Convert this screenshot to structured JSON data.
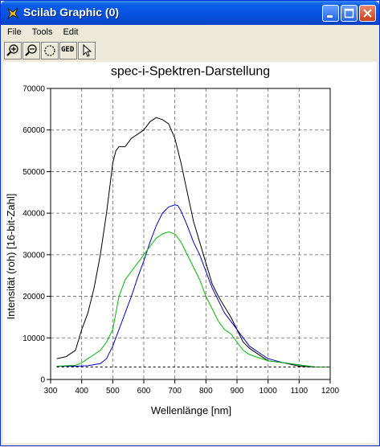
{
  "window": {
    "title": "Scilab Graphic (0)"
  },
  "menu": {
    "file": "File",
    "tools": "Tools",
    "edit": "Edit"
  },
  "toolbar": {
    "ged_label": "GED"
  },
  "chart_data": {
    "type": "line",
    "title": "spec-i-Spektren-Darstellung",
    "xlabel": "Wellenlänge [nm]",
    "ylabel": "Intensität (roh) [16-bit-Zahl]",
    "xlim": [
      300,
      1200
    ],
    "ylim": [
      0,
      70000
    ],
    "xticks": [
      300,
      400,
      500,
      600,
      700,
      800,
      900,
      1000,
      1100,
      1200
    ],
    "yticks": [
      0,
      10000,
      20000,
      30000,
      40000,
      50000,
      60000,
      70000
    ],
    "grid": true,
    "series": [
      {
        "color": "#000000",
        "x": [
          320,
          350,
          380,
          400,
          420,
          440,
          460,
          480,
          500,
          510,
          520,
          540,
          560,
          580,
          600,
          620,
          640,
          660,
          680,
          700,
          720,
          740,
          760,
          780,
          800,
          820,
          840,
          860,
          880,
          900,
          920,
          940,
          960,
          980,
          1000,
          1050,
          1100,
          1150,
          1200
        ],
        "y": [
          5000,
          5500,
          7000,
          12000,
          16000,
          22000,
          30000,
          40000,
          52000,
          55000,
          56000,
          56000,
          58000,
          59000,
          60000,
          62000,
          63000,
          62500,
          61500,
          58000,
          52000,
          45000,
          38000,
          33000,
          28000,
          23000,
          20000,
          17500,
          15000,
          12000,
          9000,
          7500,
          6500,
          5500,
          4500,
          4000,
          3200,
          3000,
          3000
        ]
      },
      {
        "color": "#0000cc",
        "x": [
          320,
          380,
          420,
          460,
          480,
          500,
          520,
          540,
          560,
          580,
          600,
          620,
          640,
          660,
          680,
          700,
          710,
          720,
          740,
          760,
          780,
          800,
          820,
          840,
          860,
          880,
          900,
          920,
          940,
          960,
          980,
          1000,
          1050,
          1100,
          1150,
          1200
        ],
        "y": [
          3200,
          3200,
          3300,
          3800,
          5000,
          8000,
          12000,
          16000,
          20000,
          24500,
          28500,
          33000,
          37000,
          40000,
          41500,
          42000,
          41800,
          40500,
          37000,
          33000,
          30000,
          26000,
          22000,
          19000,
          16000,
          14000,
          12000,
          10000,
          8000,
          7000,
          6000,
          5000,
          4000,
          3500,
          3000,
          3000
        ]
      },
      {
        "color": "#00bb00",
        "x": [
          320,
          380,
          400,
          420,
          440,
          460,
          480,
          500,
          510,
          520,
          540,
          560,
          580,
          600,
          620,
          640,
          660,
          680,
          700,
          720,
          740,
          760,
          780,
          800,
          820,
          840,
          860,
          880,
          900,
          920,
          940,
          960,
          980,
          1000,
          1050,
          1100,
          1150,
          1200
        ],
        "y": [
          3200,
          3400,
          4000,
          5000,
          6000,
          7000,
          9000,
          12000,
          16000,
          20000,
          24000,
          26000,
          28000,
          30000,
          32000,
          34000,
          35000,
          35500,
          35000,
          33000,
          30000,
          27000,
          24000,
          20000,
          17000,
          14000,
          12000,
          11000,
          9000,
          7000,
          6000,
          5500,
          5000,
          4500,
          4000,
          3500,
          3000,
          3000
        ]
      },
      {
        "color": "#000000",
        "dashed": true,
        "x": [
          320,
          1200
        ],
        "y": [
          3000,
          3000
        ]
      }
    ]
  }
}
